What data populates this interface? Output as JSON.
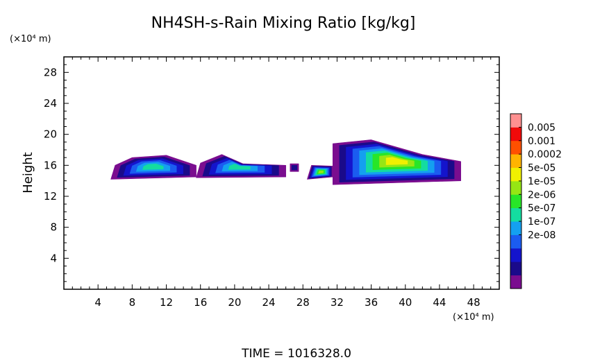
{
  "chart_data": {
    "type": "heatmap",
    "title": "NH4SH-s-Rain Mixing Ratio [kg/kg]",
    "ylabel": "Height",
    "y_unit": "(×10⁴ m)",
    "x_unit": "(×10⁴ m)",
    "footer": "TIME  =  1016328.0",
    "xlim": [
      0,
      51
    ],
    "ylim": [
      0,
      30
    ],
    "x_ticks": [
      "4",
      "8",
      "12",
      "16",
      "20",
      "24",
      "28",
      "32",
      "36",
      "40",
      "44",
      "48"
    ],
    "y_ticks": [
      "4",
      "8",
      "12",
      "16",
      "20",
      "24",
      "28"
    ],
    "colorbar": {
      "labels": [
        "0.005",
        "0.001",
        "0.0002",
        "5e-05",
        "1e-05",
        "2e-06",
        "5e-07",
        "1e-07",
        "2e-08"
      ],
      "colors": [
        "#7a0d8f",
        "#1a0a8a",
        "#1414cc",
        "#1b5cf0",
        "#14a0f0",
        "#14dca0",
        "#28e628",
        "#96e614",
        "#f0f000",
        "#ffb400",
        "#ff5000",
        "#f00a0a",
        "#ff9090"
      ]
    },
    "regions": [
      {
        "x": [
          5.5,
          15.5,
          15.5,
          12,
          8,
          6
        ],
        "y": [
          14.2,
          14.5,
          16,
          17.3,
          17,
          16
        ],
        "level": 5
      },
      {
        "x": [
          15.5,
          26,
          26,
          21,
          18.5,
          16
        ],
        "y": [
          14.4,
          14.5,
          16,
          16.2,
          17.4,
          16.3
        ],
        "level": 5
      },
      {
        "x": [
          26.5,
          27.5,
          27.5,
          26.5
        ],
        "y": [
          15.2,
          15.2,
          16.2,
          16.2
        ],
        "level": 1
      },
      {
        "x": [
          28.5,
          31.5,
          31.5,
          29
        ],
        "y": [
          14.2,
          14.5,
          15.9,
          16
        ],
        "level": 7
      },
      {
        "x": [
          31.5,
          46.5,
          46.5,
          42,
          36,
          31.5
        ],
        "y": [
          13.5,
          14,
          16.5,
          17.4,
          19.3,
          18.8
        ],
        "level": 8
      }
    ]
  }
}
